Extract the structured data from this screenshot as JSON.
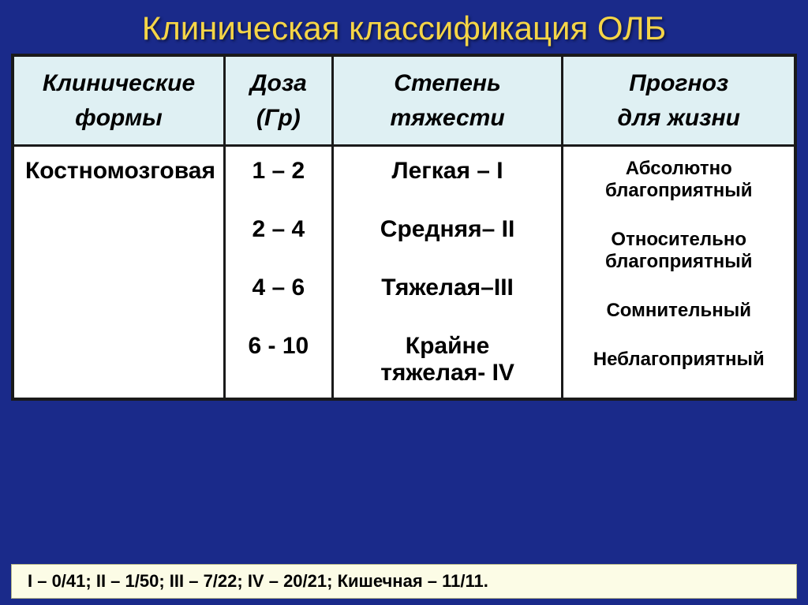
{
  "title": "Клиническая классификация ОЛБ",
  "columns": [
    "Клинические формы",
    "Доза (Гр)",
    "Степень тяжести",
    "Прогноз для жизни"
  ],
  "columnLines": {
    "c0a": "Клинические",
    "c0b": "формы",
    "c1a": "Доза",
    "c1b": "(Гр)",
    "c2a": "Степень",
    "c2b": "тяжести",
    "c3a": "Прогноз",
    "c3b": "для жизни"
  },
  "form": "Костномозговая",
  "dose": [
    "1 – 2",
    "2 – 4",
    "4 – 6",
    "6 - 10"
  ],
  "severity": [
    "Легкая – I",
    "Средняя– II",
    "Тяжелая–III",
    "Крайне тяжелая- IV"
  ],
  "severityLines": {
    "s3a": "Крайне",
    "s3b": "тяжелая- IV"
  },
  "prognosis": [
    "Абсолютно благоприятный",
    "Относительно благоприятный",
    "Сомнительный",
    "Неблагоприятный"
  ],
  "progLines": {
    "p0a": "Абсолютно",
    "p0b": "благоприятный",
    "p1a": "Относительно",
    "p1b": "благоприятный"
  },
  "footnote": "I  –  0/41;      II – 1/50;      III – 7/22;      IV – 20/21;      Кишечная – 11/11.",
  "colors": {
    "page_bg": "#1a2a8a",
    "title_color": "#f5d547",
    "header_bg": "#dff0f3",
    "cell_bg": "#ffffff",
    "border": "#1a1a1a",
    "footnote_bg": "#fcfce6"
  },
  "fontsizes": {
    "title": 42,
    "header": 30,
    "cell": 30,
    "prognosis": 24,
    "footnote": 22
  }
}
